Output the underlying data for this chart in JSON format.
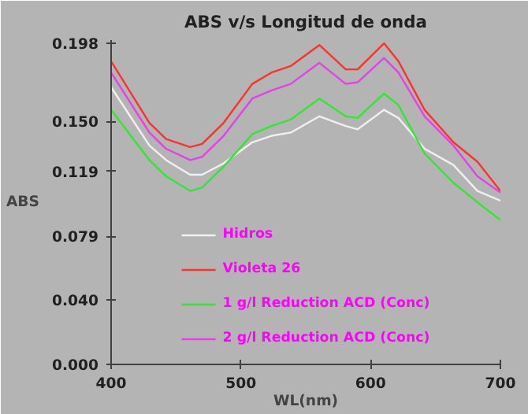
{
  "chart_data": {
    "type": "line",
    "title": "ABS v/s Longitud de onda",
    "xlabel": "WL(nm)",
    "ylabel": "ABS",
    "x": [
      400,
      429.5,
      442.4,
      460.9,
      470.1,
      486.7,
      508.8,
      523.6,
      538.4,
      560.5,
      580.8,
      590,
      610.3,
      621.4,
      641.6,
      663.8,
      682.3,
      700
    ],
    "series": [
      {
        "name": "Hidros",
        "color": "#f0f0f0",
        "values": [
          0.171,
          0.135,
          0.126,
          0.117,
          0.117,
          0.124,
          0.137,
          0.141,
          0.143,
          0.153,
          0.147,
          0.145,
          0.157,
          0.152,
          0.133,
          0.123,
          0.107,
          0.101
        ]
      },
      {
        "name": "Violeta 26",
        "color": "#ff3030",
        "values": [
          0.187,
          0.149,
          0.139,
          0.134,
          0.136,
          0.149,
          0.173,
          0.18,
          0.184,
          0.197,
          0.182,
          0.182,
          0.198,
          0.187,
          0.157,
          0.137,
          0.125,
          0.107
        ]
      },
      {
        "name": "1 g/l Reduction ACD (Conc)",
        "color": "#33e633",
        "values": [
          0.157,
          0.126,
          0.116,
          0.107,
          0.109,
          0.122,
          0.142,
          0.147,
          0.151,
          0.164,
          0.153,
          0.152,
          0.167,
          0.16,
          0.13,
          0.112,
          0.1,
          0.089
        ]
      },
      {
        "name": "2 g/l Reduction ACD (Conc)",
        "color": "#e640e6",
        "values": [
          0.18,
          0.143,
          0.133,
          0.126,
          0.128,
          0.141,
          0.164,
          0.169,
          0.173,
          0.186,
          0.173,
          0.174,
          0.189,
          0.18,
          0.153,
          0.135,
          0.116,
          0.106
        ]
      }
    ],
    "xlim": [
      400,
      700
    ],
    "xticks": [
      400,
      500,
      600,
      700
    ],
    "ylim": [
      0,
      0.2
    ],
    "yticks": [
      {
        "value": 0,
        "label": "0.000"
      },
      {
        "value": 0.04,
        "label": "0.040"
      },
      0.079,
      0.119,
      {
        "value": 0.15,
        "label": "0.150"
      },
      0.198
    ],
    "legend": "bottom",
    "grid": false,
    "marker": "none",
    "line_style": "solid"
  }
}
